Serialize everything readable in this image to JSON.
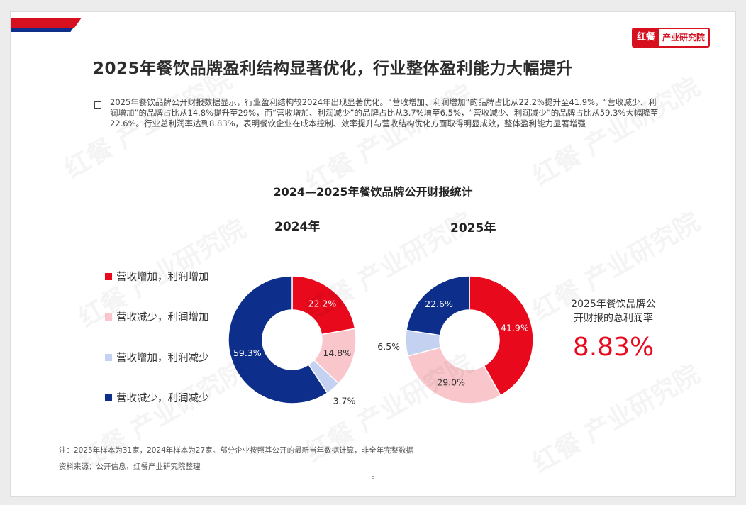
{
  "header": {
    "title": "2025年餐饮品牌盈利结构显著优化，行业整体盈利能力大幅提升",
    "logo_left": "红餐",
    "logo_right": "产业研究院"
  },
  "summary": "2025年餐饮品牌公开财报数据显示，行业盈利结构较2024年出现显著优化。“营收增加、利润增加”的品牌占比从22.2%提升至41.9%，“营收减少、利润增加”的品牌占比从14.8%提升至29%，而“营收增加、利润减少”的品牌占比从3.7%增至6.5%，“营收减少、利润减少”的品牌占比从59.3%大幅降至22.6%。行业总利润率达到8.83%，表明餐饮企业在成本控制、效率提升与营收结构优化方面取得明显成效，整体盈利能力显著增强",
  "chart_data": {
    "type": "pie",
    "title": "2024—2025年餐饮品牌公开财报统计",
    "categories": [
      "营收增加，利润增加",
      "营收减少，利润增加",
      "营收增加，利润减少",
      "营收减少，利润减少"
    ],
    "colors": [
      "#e8091d",
      "#f8c6cb",
      "#c5d1f0",
      "#0d2e8a"
    ],
    "series": [
      {
        "name": "2024年",
        "values": [
          22.2,
          14.8,
          3.7,
          59.3
        ],
        "labels": [
          "22.2%",
          "14.8%",
          "3.7%",
          "59.3%"
        ]
      },
      {
        "name": "2025年",
        "values": [
          41.9,
          29.0,
          6.5,
          22.6
        ],
        "labels": [
          "41.9%",
          "29.0%",
          "6.5%",
          "22.6%"
        ]
      }
    ],
    "legend_position": "left"
  },
  "side_stat": {
    "label_line1": "2025年餐饮品牌公",
    "label_line2": "开财报的总利润率",
    "value": "8.83%"
  },
  "notes": {
    "note": "注：2025年样本为31家，2024年样本为27家。部分企业按照其公开的最新当年数据计算，非全年完整数据",
    "source": "资料来源：公开信息，红餐产业研究院整理"
  },
  "page_number": "8",
  "watermark": "红餐 产业研究院"
}
